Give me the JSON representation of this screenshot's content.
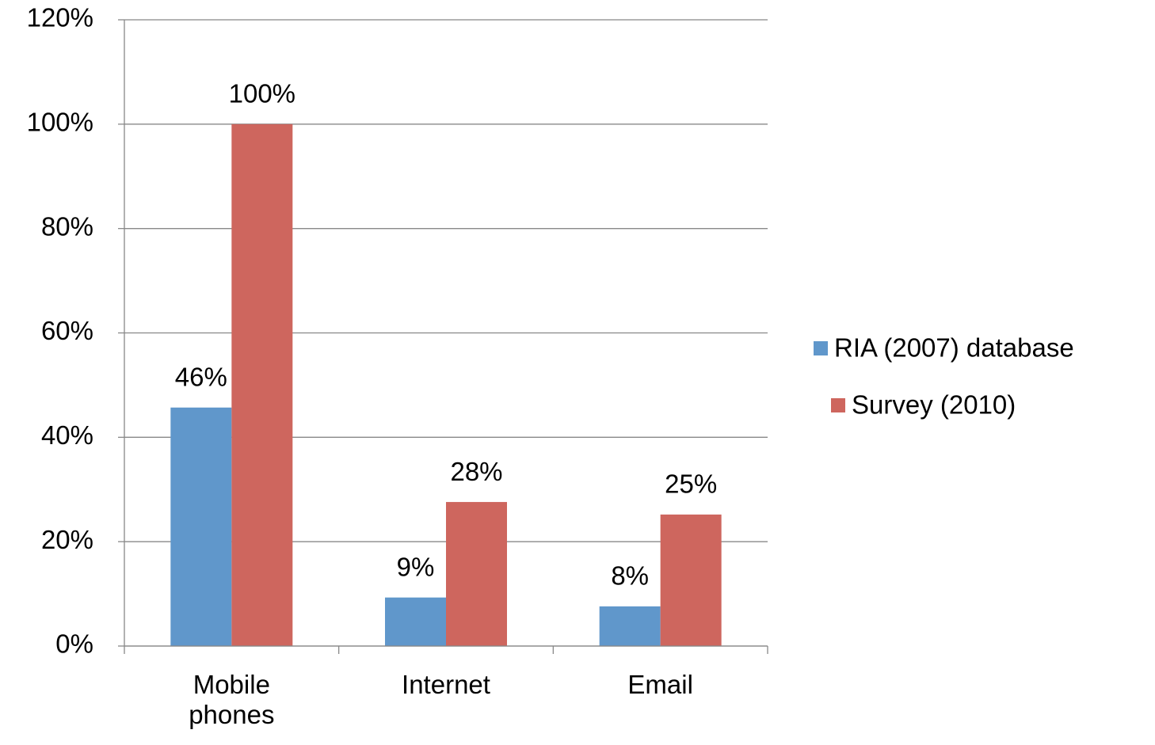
{
  "chart_data": {
    "type": "bar",
    "categories": [
      "Mobile phones",
      "Internet",
      "Email"
    ],
    "series": [
      {
        "name": "RIA (2007) database",
        "color": "#6097cb",
        "values": [
          45.7,
          9.3,
          7.6
        ],
        "value_labels": [
          "46%",
          "9%",
          "8%"
        ]
      },
      {
        "name": "Survey (2010)",
        "color": "#ce665e",
        "values": [
          100,
          27.6,
          25.2
        ],
        "value_labels": [
          "100%",
          "28%",
          "25%"
        ]
      }
    ],
    "ylim": [
      0,
      120
    ],
    "yticks": [
      {
        "value": 0,
        "label": "0%"
      },
      {
        "value": 20,
        "label": "20%"
      },
      {
        "value": 40,
        "label": "40%"
      },
      {
        "value": 60,
        "label": "60%"
      },
      {
        "value": 80,
        "label": "80%"
      },
      {
        "value": 100,
        "label": "100%"
      },
      {
        "value": 120,
        "label": "120%"
      }
    ],
    "grid": true,
    "legend": "right"
  }
}
